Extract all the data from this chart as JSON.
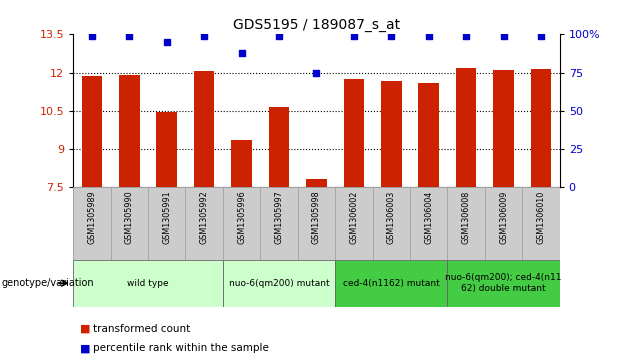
{
  "title": "GDS5195 / 189087_s_at",
  "samples": [
    "GSM1305989",
    "GSM1305990",
    "GSM1305991",
    "GSM1305992",
    "GSM1305996",
    "GSM1305997",
    "GSM1305998",
    "GSM1306002",
    "GSM1306003",
    "GSM1306004",
    "GSM1306008",
    "GSM1306009",
    "GSM1306010"
  ],
  "bar_values": [
    11.85,
    11.9,
    10.45,
    12.05,
    9.35,
    10.65,
    7.82,
    11.75,
    11.65,
    11.6,
    12.2,
    12.1,
    12.15
  ],
  "dot_values_pct": [
    99,
    99,
    95,
    99,
    88,
    99,
    75,
    99,
    99,
    99,
    99,
    99,
    99
  ],
  "bar_color": "#cc2200",
  "dot_color": "#0000cc",
  "ylim_left": [
    7.5,
    13.5
  ],
  "ylim_right": [
    0,
    100
  ],
  "yticks_left": [
    7.5,
    9.0,
    10.5,
    12.0,
    13.5
  ],
  "yticks_right": [
    0,
    25,
    50,
    75,
    100
  ],
  "ytick_labels_left": [
    "7.5",
    "9",
    "10.5",
    "12",
    "13.5"
  ],
  "ytick_labels_right": [
    "0",
    "25",
    "50",
    "75",
    "100%"
  ],
  "hgrid_lines": [
    9.0,
    10.5,
    12.0
  ],
  "groups": [
    {
      "label": "wild type",
      "start": 0,
      "end": 3,
      "color": "#ccffcc"
    },
    {
      "label": "nuo-6(qm200) mutant",
      "start": 4,
      "end": 6,
      "color": "#ccffcc"
    },
    {
      "label": "ced-4(n1162) mutant",
      "start": 7,
      "end": 9,
      "color": "#44cc44"
    },
    {
      "label": "nuo-6(qm200); ced-4(n11\n62) double mutant",
      "start": 10,
      "end": 12,
      "color": "#44cc44"
    }
  ],
  "legend_label_bar": "transformed count",
  "legend_label_dot": "percentile rank within the sample",
  "genotype_label": "genotype/variation",
  "bar_width": 0.55,
  "sample_bg_color": "#cccccc",
  "bar_color_dark": "#aa1100"
}
